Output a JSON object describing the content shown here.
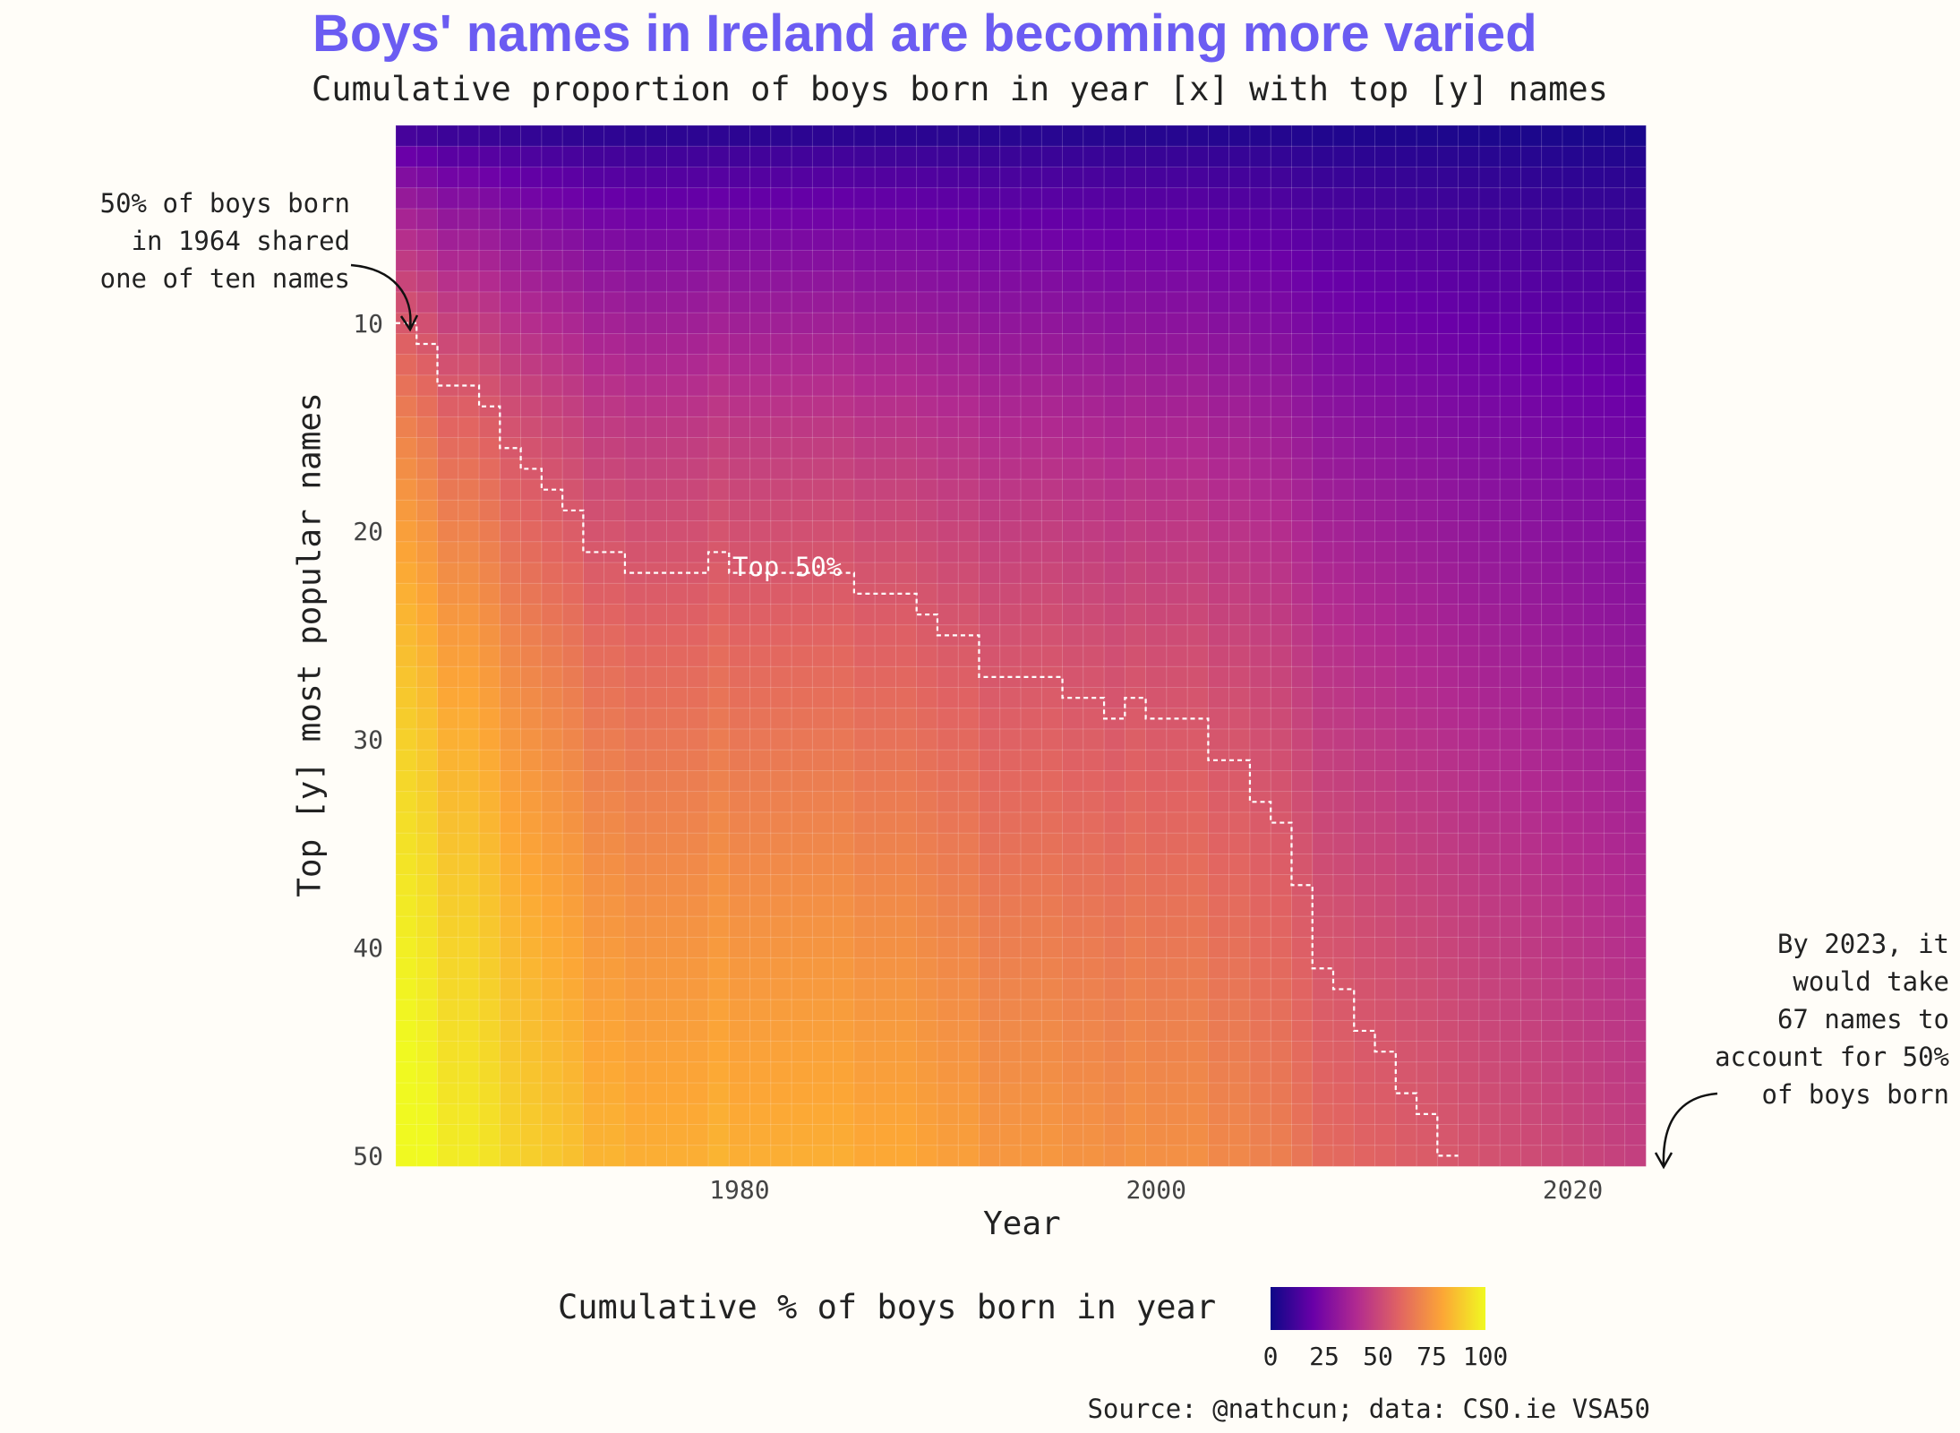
{
  "title": "Boys' names in Ireland are becoming more varied",
  "subtitle": "Cumulative proportion of boys born in year [x] with top [y] names",
  "annotation_left": "50% of boys born\nin 1964 shared\none of ten names",
  "annotation_right": "By 2023, it\nwould take\n67 names to\naccount for 50%\nof boys born",
  "source": "Source: @nathcun; data: CSO.ie VSA50",
  "colors": {
    "background": "#fffdf8",
    "title": "#6b5cf2",
    "palette": [
      "#0d0887",
      "#6a00a8",
      "#b12a90",
      "#e16462",
      "#fca636",
      "#f0f921"
    ]
  },
  "chart_data": {
    "type": "heatmap",
    "xlabel": "Year",
    "ylabel": "Top [y] most popular names",
    "x_range": [
      1964,
      2023
    ],
    "y_range": [
      1,
      50
    ],
    "y_reversed": true,
    "x_ticks": [
      "1980",
      "2000",
      "2020"
    ],
    "y_ticks": [
      "10",
      "20",
      "30",
      "40",
      "50"
    ],
    "color_scale": "plasma",
    "legend_title": "Cumulative % of boys born in year",
    "legend_ticks": [
      "0",
      "25",
      "50",
      "75",
      "100"
    ],
    "legend_position": "bottom",
    "contour_label": "Top 50%",
    "top50_names_by_year": [
      {
        "year": 1964,
        "names": 10
      },
      {
        "year": 1965,
        "names": 11
      },
      {
        "year": 1966,
        "names": 13
      },
      {
        "year": 1967,
        "names": 13
      },
      {
        "year": 1968,
        "names": 14
      },
      {
        "year": 1969,
        "names": 16
      },
      {
        "year": 1970,
        "names": 17
      },
      {
        "year": 1971,
        "names": 18
      },
      {
        "year": 1972,
        "names": 19
      },
      {
        "year": 1973,
        "names": 21
      },
      {
        "year": 1974,
        "names": 21
      },
      {
        "year": 1975,
        "names": 22
      },
      {
        "year": 1976,
        "names": 22
      },
      {
        "year": 1977,
        "names": 22
      },
      {
        "year": 1978,
        "names": 22
      },
      {
        "year": 1979,
        "names": 21
      },
      {
        "year": 1980,
        "names": 22
      },
      {
        "year": 1981,
        "names": 22
      },
      {
        "year": 1982,
        "names": 22
      },
      {
        "year": 1983,
        "names": 22
      },
      {
        "year": 1984,
        "names": 22
      },
      {
        "year": 1985,
        "names": 22
      },
      {
        "year": 1986,
        "names": 23
      },
      {
        "year": 1987,
        "names": 23
      },
      {
        "year": 1988,
        "names": 23
      },
      {
        "year": 1989,
        "names": 24
      },
      {
        "year": 1990,
        "names": 25
      },
      {
        "year": 1991,
        "names": 25
      },
      {
        "year": 1992,
        "names": 27
      },
      {
        "year": 1993,
        "names": 27
      },
      {
        "year": 1994,
        "names": 27
      },
      {
        "year": 1995,
        "names": 27
      },
      {
        "year": 1996,
        "names": 28
      },
      {
        "year": 1997,
        "names": 28
      },
      {
        "year": 1998,
        "names": 29
      },
      {
        "year": 1999,
        "names": 28
      },
      {
        "year": 2000,
        "names": 29
      },
      {
        "year": 2001,
        "names": 29
      },
      {
        "year": 2002,
        "names": 29
      },
      {
        "year": 2003,
        "names": 31
      },
      {
        "year": 2004,
        "names": 31
      },
      {
        "year": 2005,
        "names": 33
      },
      {
        "year": 2006,
        "names": 34
      },
      {
        "year": 2007,
        "names": 37
      },
      {
        "year": 2008,
        "names": 41
      },
      {
        "year": 2009,
        "names": 42
      },
      {
        "year": 2010,
        "names": 44
      },
      {
        "year": 2011,
        "names": 45
      },
      {
        "year": 2012,
        "names": 47
      },
      {
        "year": 2013,
        "names": 48
      },
      {
        "year": 2014,
        "names": 50
      }
    ]
  }
}
